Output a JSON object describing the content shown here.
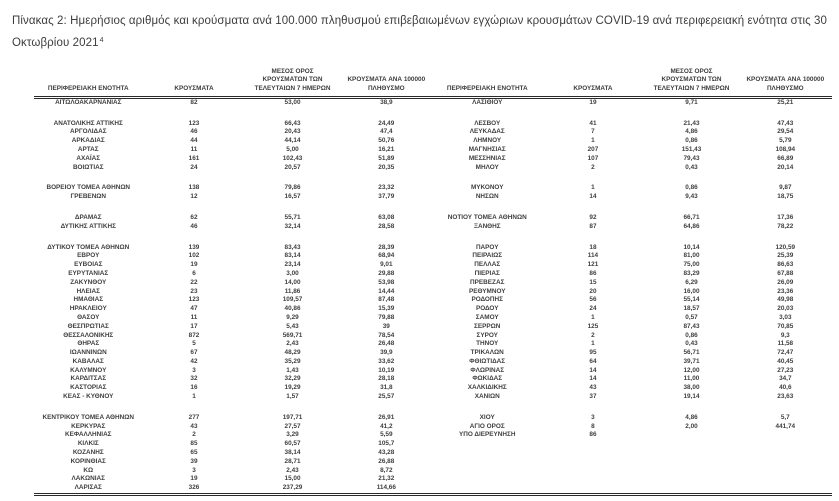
{
  "page": {
    "background": "#ffffff",
    "text_color": "#3d3d3d",
    "rule_color": "#2a2a2a"
  },
  "title": {
    "text": "Πίνακας 2: Ημερήσιος αριθμός και κρούσματα ανά 100.000 πληθυσμού επιβεβαιωμένων εγχώριων κρουσμάτων COVID-19 ανά περιφερειακή ενότητα στις 30 Οκτωβρίου 2021",
    "footnote": "4"
  },
  "table": {
    "headers": {
      "region": "ΠΕΡΙΦΕΡΕΙΑΚΗ ΕΝΟΤΗΤΑ",
      "cases": "ΚΡΟΥΣΜΑΤΑ",
      "avg_7day": "ΜΕΣΟΣ ΟΡΟΣ ΚΡΟΥΣΜΑΤΩΝ ΤΩΝ ΤΕΛΕΥΤΑΙΩΝ 7 ΗΜΕΡΩΝ",
      "per_100k": "ΚΡΟΥΣΜΑΤΑ ΑΝΑ 100000 ΠΛΗΘΥΣΜΟ"
    },
    "rows": [
      [
        "ΑΙΤΩΛΟΑΚΑΡΝΑΝΙΑΣ",
        "82",
        "53,00",
        "38,9",
        "ΛΑΣΙΘΙΟΥ",
        "19",
        "9,71",
        "25,21"
      ],
      [],
      [
        "ΑΝΑΤΟΛΙΚΗΣ ΑΤΤΙΚΗΣ",
        "123",
        "66,43",
        "24,49",
        "ΛΕΣΒΟΥ",
        "41",
        "21,43",
        "47,43"
      ],
      [
        "ΑΡΓΟΛΙΔΑΣ",
        "46",
        "20,43",
        "47,4",
        "ΛΕΥΚΑΔΑΣ",
        "7",
        "4,86",
        "29,54"
      ],
      [
        "ΑΡΚΑΔΙΑΣ",
        "44",
        "44,14",
        "50,76",
        "ΛΗΜΝΟΥ",
        "1",
        "0,86",
        "5,79"
      ],
      [
        "ΑΡΤΑΣ",
        "11",
        "5,00",
        "16,21",
        "ΜΑΓΝΗΣΙΑΣ",
        "207",
        "151,43",
        "108,94"
      ],
      [
        "ΑΧΑΪΑΣ",
        "161",
        "102,43",
        "51,89",
        "ΜΕΣΣΗΝΙΑΣ",
        "107",
        "79,43",
        "66,89"
      ],
      [
        "ΒΟΙΩΤΙΑΣ",
        "24",
        "20,57",
        "20,35",
        "ΜΗΛΟΥ",
        "2",
        "0,43",
        "20,14"
      ],
      [],
      [
        "ΒΟΡΕΙΟΥ ΤΟΜΕΑ ΑΘΗΝΩΝ",
        "138",
        "79,86",
        "23,32",
        "ΜΥΚΟΝΟΥ",
        "1",
        "0,86",
        "9,87"
      ],
      [
        "ΓΡΕΒΕΝΩΝ",
        "12",
        "16,57",
        "37,79",
        "ΝΗΣΩΝ",
        "14",
        "9,43",
        "18,75"
      ],
      [],
      [
        "ΔΡΑΜΑΣ",
        "62",
        "55,71",
        "63,08",
        "ΝΟΤΙΟΥ ΤΟΜΕΑ ΑΘΗΝΩΝ",
        "92",
        "66,71",
        "17,36"
      ],
      [
        "ΔΥΤΙΚΗΣ ΑΤΤΙΚΗΣ",
        "46",
        "32,14",
        "28,58",
        "ΞΑΝΘΗΣ",
        "87",
        "64,86",
        "78,22"
      ],
      [],
      [
        "ΔΥΤΙΚΟΥ ΤΟΜΕΑ ΑΘΗΝΩΝ",
        "139",
        "83,43",
        "28,39",
        "ΠΑΡΟΥ",
        "18",
        "10,14",
        "120,59"
      ],
      [
        "ΕΒΡΟΥ",
        "102",
        "83,14",
        "68,94",
        "ΠΕΙΡΑΙΩΣ",
        "114",
        "81,00",
        "25,39"
      ],
      [
        "ΕΥΒΟΙΑΣ",
        "19",
        "23,14",
        "9,01",
        "ΠΕΛΛΑΣ",
        "121",
        "75,00",
        "86,63"
      ],
      [
        "ΕΥΡΥΤΑΝΙΑΣ",
        "6",
        "3,00",
        "29,88",
        "ΠΙΕΡΙΑΣ",
        "86",
        "83,29",
        "67,88"
      ],
      [
        "ΖΑΚΥΝΘΟΥ",
        "22",
        "14,00",
        "53,98",
        "ΠΡΕΒΕΖΑΣ",
        "15",
        "6,29",
        "26,09"
      ],
      [
        "ΗΛΕΙΑΣ",
        "23",
        "11,86",
        "14,44",
        "ΡΕΘΥΜΝΟΥ",
        "20",
        "16,00",
        "23,36"
      ],
      [
        "ΗΜΑΘΙΑΣ",
        "123",
        "109,57",
        "87,48",
        "ΡΟΔΟΠΗΣ",
        "56",
        "55,14",
        "49,98"
      ],
      [
        "ΗΡΑΚΛΕΙΟΥ",
        "47",
        "40,86",
        "15,39",
        "ΡΟΔΟΥ",
        "24",
        "18,57",
        "20,03"
      ],
      [
        "ΘΑΣΟΥ",
        "11",
        "9,29",
        "79,88",
        "ΣΑΜΟΥ",
        "1",
        "0,57",
        "3,03"
      ],
      [
        "ΘΕΣΠΡΩΤΙΑΣ",
        "17",
        "5,43",
        "39",
        "ΣΕΡΡΩΝ",
        "125",
        "87,43",
        "70,85"
      ],
      [
        "ΘΕΣΣΑΛΟΝΙΚΗΣ",
        "872",
        "569,71",
        "78,54",
        "ΣΥΡΟΥ",
        "2",
        "0,86",
        "9,3"
      ],
      [
        "ΘΗΡΑΣ",
        "5",
        "2,43",
        "26,48",
        "ΤΗΝΟΥ",
        "1",
        "0,43",
        "11,58"
      ],
      [
        "ΙΩΑΝΝΙΝΩΝ",
        "67",
        "48,29",
        "39,9",
        "ΤΡΙΚΑΛΩΝ",
        "95",
        "56,71",
        "72,47"
      ],
      [
        "ΚΑΒΑΛΑΣ",
        "42",
        "35,29",
        "33,62",
        "ΦΘΙΩΤΙΔΑΣ",
        "64",
        "39,71",
        "40,45"
      ],
      [
        "ΚΑΛΥΜΝΟΥ",
        "3",
        "1,43",
        "10,19",
        "ΦΛΩΡΙΝΑΣ",
        "14",
        "12,00",
        "27,23"
      ],
      [
        "ΚΑΡΔΙΤΣΑΣ",
        "32",
        "32,29",
        "28,18",
        "ΦΩΚΙΔΑΣ",
        "14",
        "11,00",
        "34,7"
      ],
      [
        "ΚΑΣΤΟΡΙΑΣ",
        "16",
        "19,29",
        "31,8",
        "ΧΑΛΚΙΔΙΚΗΣ",
        "43",
        "38,00",
        "40,6"
      ],
      [
        "ΚΕΑΣ - ΚΥΘΝΟΥ",
        "1",
        "1,57",
        "25,57",
        "ΧΑΝΙΩΝ",
        "37",
        "19,14",
        "23,63"
      ],
      [],
      [
        "ΚΕΝΤΡΙΚΟΥ ΤΟΜΕΑ ΑΘΗΝΩΝ",
        "277",
        "197,71",
        "26,91",
        "ΧΙΟΥ",
        "3",
        "4,86",
        "5,7"
      ],
      [
        "ΚΕΡΚΥΡΑΣ",
        "43",
        "27,57",
        "41,2",
        "ΑΓΙΟ ΟΡΟΣ",
        "8",
        "2,00",
        "441,74"
      ],
      [
        "ΚΕΦΑΛΛΗΝΙΑΣ",
        "2",
        "3,29",
        "5,59",
        "ΥΠΟ ΔΙΕΡΕΥΝΗΣΗ",
        "86",
        "",
        ""
      ],
      [
        "ΚΙΛΚΙΣ",
        "85",
        "60,57",
        "105,7",
        "",
        "",
        "",
        ""
      ],
      [
        "ΚΟΖΑΝΗΣ",
        "65",
        "38,14",
        "43,28",
        "",
        "",
        "",
        ""
      ],
      [
        "ΚΟΡΙΝΘΙΑΣ",
        "39",
        "28,71",
        "26,88",
        "",
        "",
        "",
        ""
      ],
      [
        "ΚΩ",
        "3",
        "2,43",
        "8,72",
        "",
        "",
        "",
        ""
      ],
      [
        "ΛΑΚΩΝΙΑΣ",
        "19",
        "15,00",
        "21,32",
        "",
        "",
        "",
        ""
      ],
      [
        "ΛΑΡΙΣΑΣ",
        "326",
        "237,29",
        "114,66",
        "",
        "",
        "",
        ""
      ]
    ]
  }
}
